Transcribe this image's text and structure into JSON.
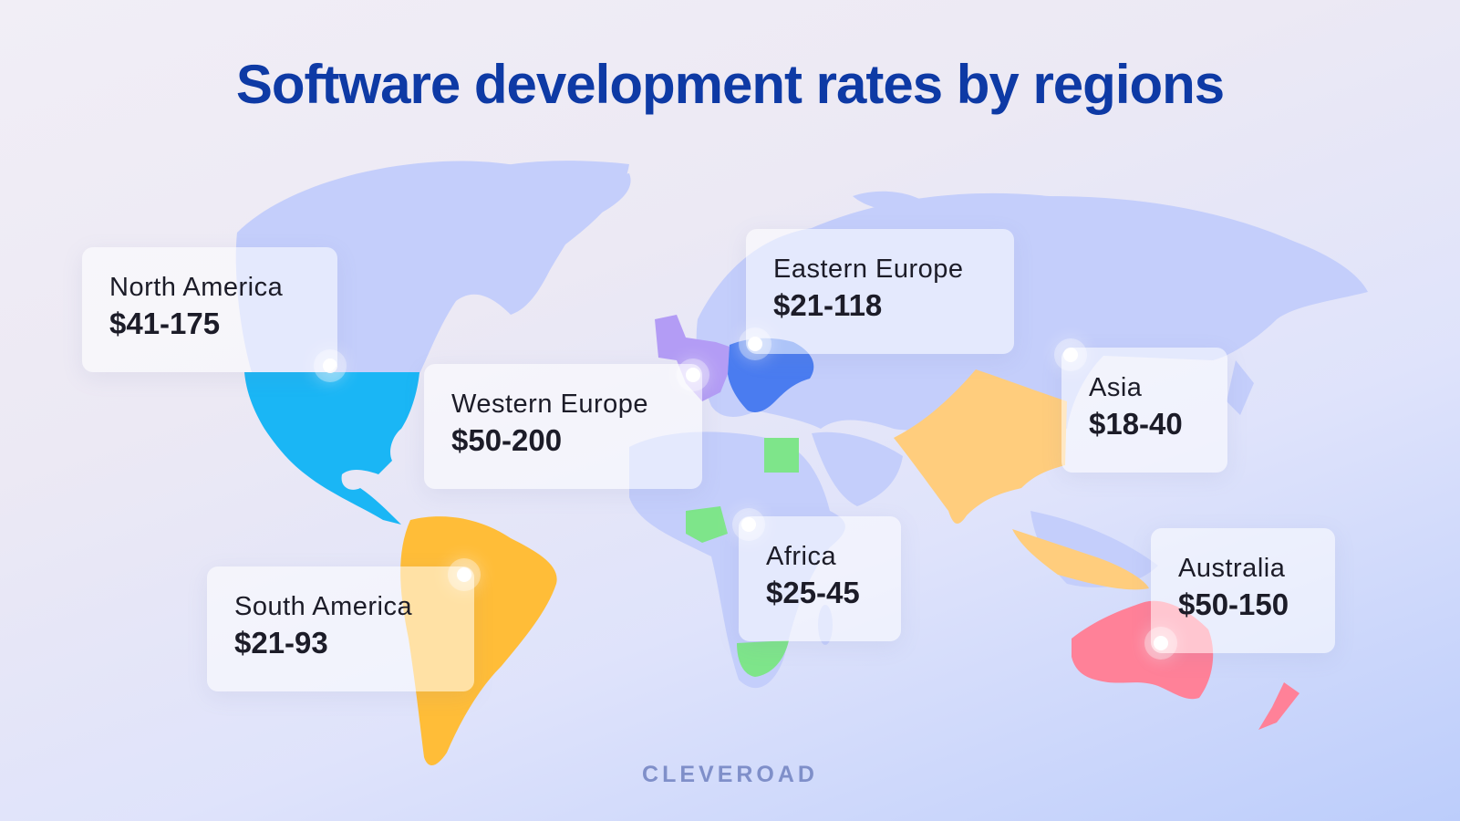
{
  "title": "Software development rates by regions",
  "brand": "CLEVEROAD",
  "regions": [
    {
      "name": "North America",
      "rate": "$41-175",
      "color": "#1ab6f5"
    },
    {
      "name": "Western Europe",
      "rate": "$50-200",
      "color": "#b39cf5"
    },
    {
      "name": "Eastern Europe",
      "rate": "$21-118",
      "color": "#4a7cf0"
    },
    {
      "name": "Asia",
      "rate": "$18-40",
      "color": "#ffcd7d"
    },
    {
      "name": "Africa",
      "rate": "$25-45",
      "color": "#7ee58a"
    },
    {
      "name": "South America",
      "rate": "$21-93",
      "color": "#ffbd38"
    },
    {
      "name": "Australia",
      "rate": "$50-150",
      "color": "#ff8198"
    }
  ],
  "colors": {
    "title": "#0e3aa5",
    "land": "#c4cefb",
    "brand": "#7f8fc9"
  }
}
